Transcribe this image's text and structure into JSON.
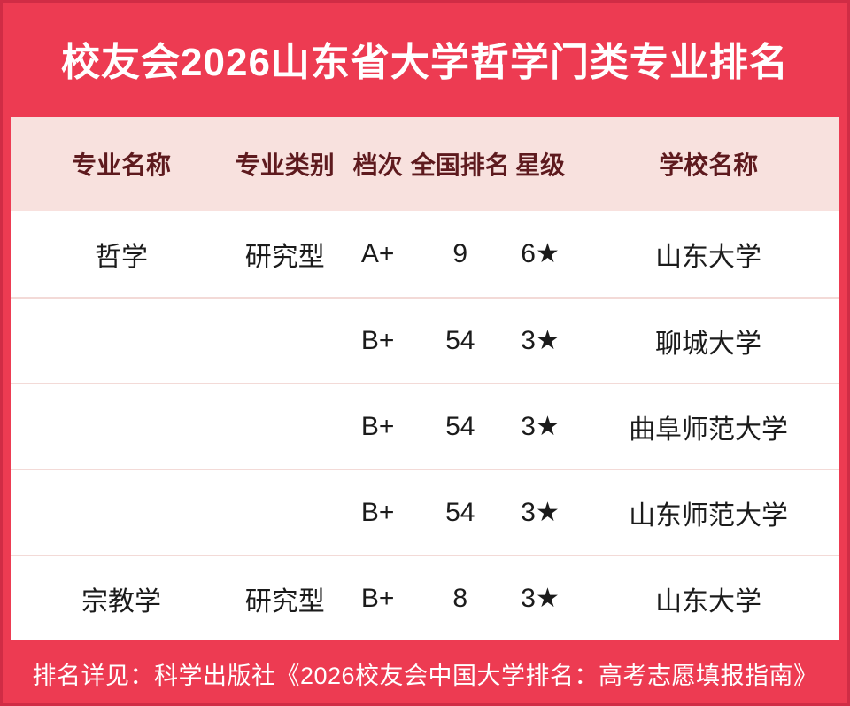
{
  "title": "校友会2026山东省大学哲学门类专业排名",
  "footer": "排名详见：科学出版社《2026校友会中国大学排名：高考志愿填报指南》",
  "colors": {
    "primary_red": "#ED3B52",
    "border_red": "#D02C45",
    "header_pink": "#F8E1DE",
    "header_text": "#5E1A1E",
    "divider_pink": "#F3DAD7",
    "body_text": "#1B1B1B",
    "title_text": "#FFFFFF"
  },
  "table": {
    "headers": [
      "专业名称",
      "专业类别",
      "档次",
      "全国排名",
      "星级",
      "学校名称"
    ],
    "rows": [
      {
        "cells": [
          "哲学",
          "研究型",
          "A+",
          "9",
          "6★",
          "山东大学"
        ]
      },
      {
        "cells": [
          "",
          "",
          "B+",
          "54",
          "3★",
          "聊城大学"
        ]
      },
      {
        "cells": [
          "",
          "",
          "B+",
          "54",
          "3★",
          "曲阜师范大学"
        ]
      },
      {
        "cells": [
          "",
          "",
          "B+",
          "54",
          "3★",
          "山东师范大学"
        ]
      },
      {
        "cells": [
          "宗教学",
          "研究型",
          "B+",
          "8",
          "3★",
          "山东大学"
        ]
      }
    ]
  },
  "chart_data": {
    "type": "table",
    "title": "校友会2026山东省大学哲学门类专业排名",
    "columns": [
      "专业名称",
      "专业类别",
      "档次",
      "全国排名",
      "星级",
      "学校名称"
    ],
    "rows": [
      [
        "哲学",
        "研究型",
        "A+",
        "9",
        "6★",
        "山东大学"
      ],
      [
        "",
        "",
        "B+",
        "54",
        "3★",
        "聊城大学"
      ],
      [
        "",
        "",
        "B+",
        "54",
        "3★",
        "曲阜师范大学"
      ],
      [
        "",
        "",
        "B+",
        "54",
        "3★",
        "山东师范大学"
      ],
      [
        "宗教学",
        "研究型",
        "B+",
        "8",
        "3★",
        "山东大学"
      ]
    ],
    "note": "排名详见：科学出版社《2026校友会中国大学排名：高考志愿填报指南》"
  }
}
